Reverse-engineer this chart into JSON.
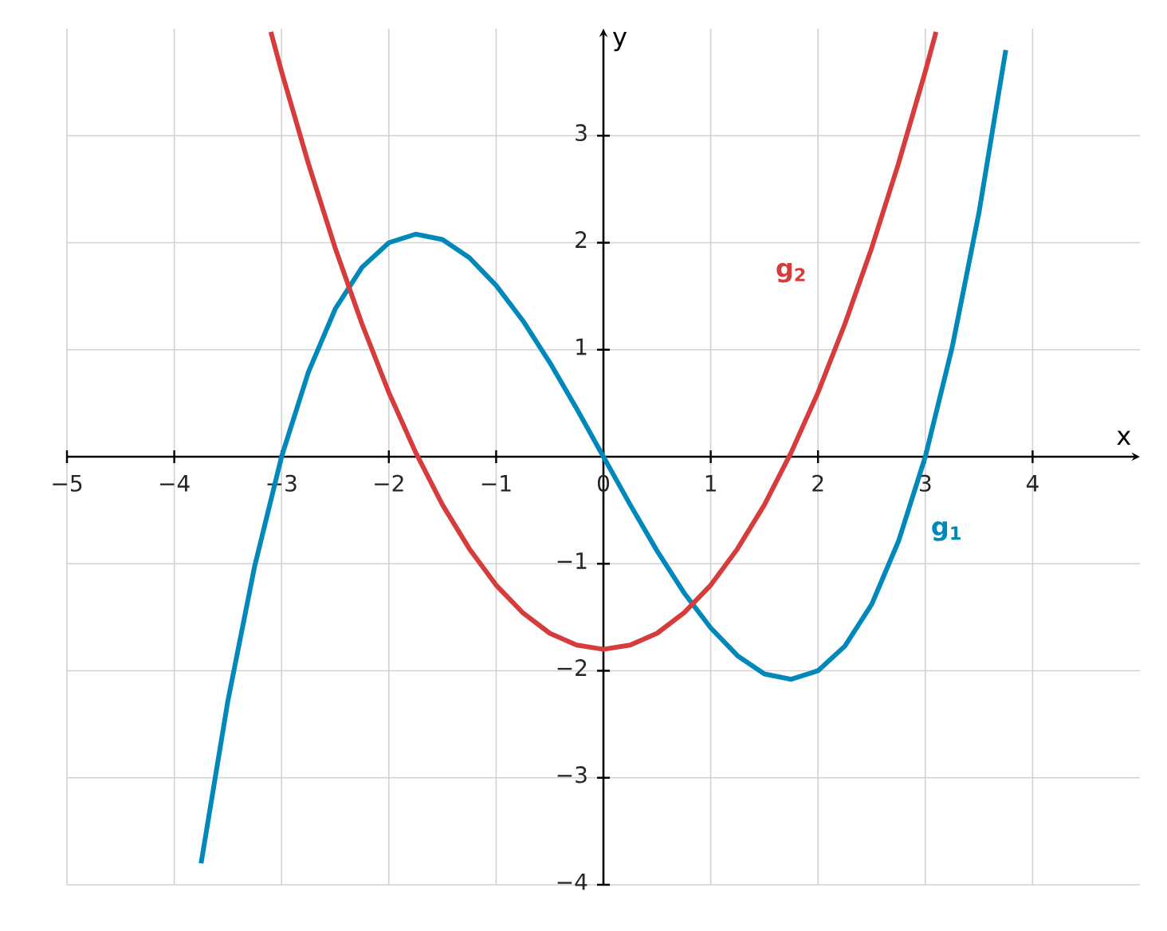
{
  "chart_data": {
    "type": "line",
    "xlabel": "x",
    "ylabel": "y",
    "xlim": [
      -5,
      5
    ],
    "ylim": [
      -4,
      4
    ],
    "xticks": [
      {
        "value": -5,
        "label": "−5"
      },
      {
        "value": -4,
        "label": "−4"
      },
      {
        "value": -3,
        "label": "−3"
      },
      {
        "value": -2,
        "label": "−2"
      },
      {
        "value": -1,
        "label": "−1"
      },
      0,
      1,
      2,
      3,
      4
    ],
    "yticks": [
      {
        "value": -4,
        "label": "−4"
      },
      {
        "value": -3,
        "label": "−3"
      },
      {
        "value": -2,
        "label": "−2"
      },
      {
        "value": -1,
        "label": "−1"
      },
      1,
      2,
      3
    ],
    "grid": true,
    "legend": false,
    "marker": "none",
    "line_style": "solid",
    "series": [
      {
        "name": "g$_{1}$",
        "color": "#0088bb",
        "x": [
          -3.75,
          -3.5,
          -3.25,
          -3,
          -2.75,
          -2.5,
          -2.25,
          -2,
          -1.75,
          -1.5,
          -1.25,
          -1,
          -0.75,
          -0.5,
          -0.25,
          0,
          0.25,
          0.5,
          0.75,
          1,
          1.25,
          1.5,
          1.75,
          2,
          2.25,
          2.5,
          2.75,
          3,
          3.25,
          3.5,
          3.75
        ],
        "values": [
          -3.8,
          -2.28,
          -1.02,
          0,
          0.79,
          1.38,
          1.77,
          2.0,
          2.08,
          2.03,
          1.86,
          1.6,
          1.27,
          0.88,
          0.45,
          0,
          -0.45,
          -0.88,
          -1.27,
          -1.6,
          -1.86,
          -2.03,
          -2.08,
          -2.0,
          -1.77,
          -1.38,
          -0.79,
          0,
          1.02,
          2.28,
          3.8
        ]
      },
      {
        "name": "g$_{2}$",
        "color": "#d63c3c",
        "x": [
          -3.1,
          -3,
          -2.75,
          -2.5,
          -2.25,
          -2,
          -1.75,
          -1.5,
          -1.25,
          -1,
          -0.75,
          -0.5,
          -0.25,
          0,
          0.25,
          0.5,
          0.75,
          1,
          1.25,
          1.5,
          1.75,
          2,
          2.25,
          2.5,
          2.75,
          3,
          3.1
        ],
        "values": [
          3.97,
          3.6,
          2.74,
          1.95,
          1.24,
          0.6,
          0.04,
          -0.45,
          -0.86,
          -1.2,
          -1.46,
          -1.65,
          -1.76,
          -1.8,
          -1.76,
          -1.65,
          -1.46,
          -1.2,
          -0.86,
          -0.45,
          0.04,
          0.6,
          1.24,
          1.95,
          2.74,
          3.6,
          3.97
        ]
      }
    ]
  }
}
